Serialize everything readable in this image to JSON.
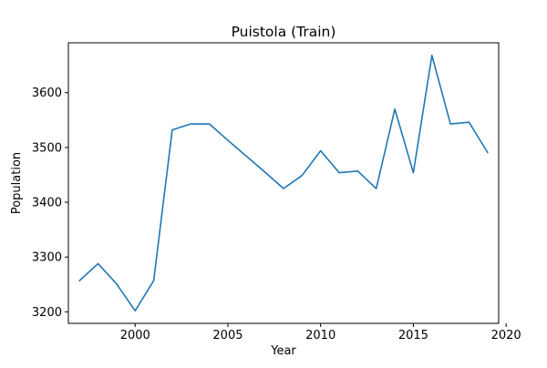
{
  "chart_data": {
    "type": "line",
    "title": "Puistola (Train)",
    "xlabel": "Year",
    "ylabel": "Population",
    "xlim": [
      1996.4,
      2019.6
    ],
    "ylim": [
      3179,
      3691
    ],
    "xticks": [
      2000,
      2005,
      2010,
      2015,
      2020
    ],
    "yticks": [
      3200,
      3300,
      3400,
      3500,
      3600
    ],
    "grid": false,
    "legend": "none",
    "series": [
      {
        "color": "#1f77b4",
        "x": [
          1997,
          1998,
          1999,
          2000,
          2001,
          2002,
          2003,
          2004,
          2005,
          2006,
          2007,
          2008,
          2009,
          2010,
          2011,
          2012,
          2013,
          2014,
          2015,
          2016,
          2017,
          2018,
          2019
        ],
        "y": [
          3257,
          3288,
          3251,
          3202,
          3257,
          3532,
          3543,
          3543,
          3513,
          3484,
          3455,
          3425,
          3449,
          3494,
          3454,
          3457,
          3425,
          3570,
          3454,
          3668,
          3543,
          3546,
          3491
        ]
      }
    ]
  }
}
